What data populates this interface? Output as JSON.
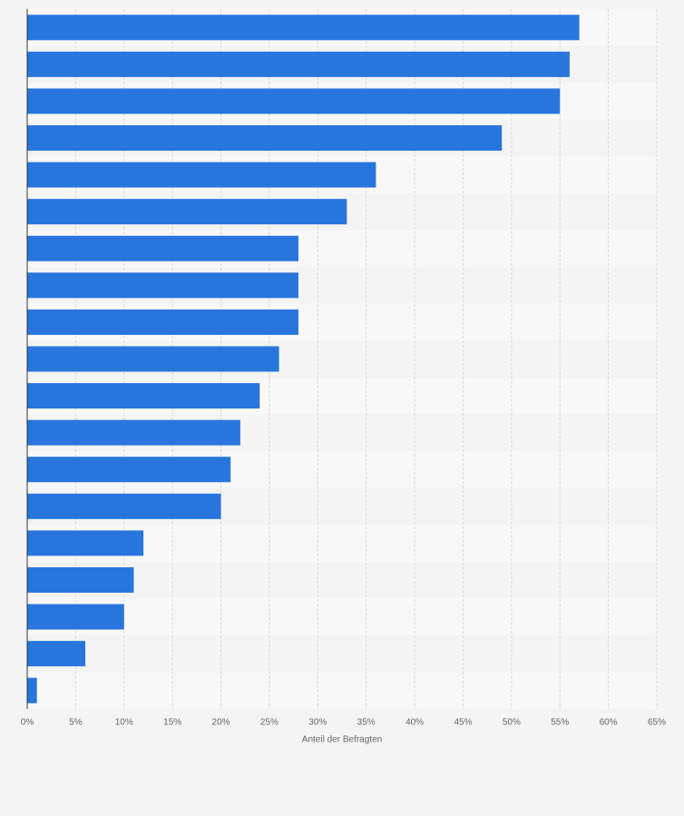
{
  "chart_data": {
    "type": "bar",
    "orientation": "horizontal",
    "x_label": "Anteil der Befragten",
    "categories": [
      null,
      null,
      null,
      null,
      null,
      null,
      null,
      null,
      null,
      null,
      null,
      null,
      null,
      null,
      null,
      null,
      null,
      null,
      null
    ],
    "values": [
      57,
      56,
      55,
      49,
      36,
      33,
      28,
      28,
      28,
      26,
      24,
      22,
      21,
      20,
      12,
      11,
      10,
      6,
      1
    ],
    "color": "#2876dd",
    "xlim": [
      0,
      65
    ],
    "xticks": [
      {
        "value": 0,
        "label": "0%"
      },
      {
        "value": 5,
        "label": "5%"
      },
      {
        "value": 10,
        "label": "10%"
      },
      {
        "value": 15,
        "label": "15%"
      },
      {
        "value": 20,
        "label": "20%"
      },
      {
        "value": 25,
        "label": "25%"
      },
      {
        "value": 30,
        "label": "30%"
      },
      {
        "value": 35,
        "label": "35%"
      },
      {
        "value": 40,
        "label": "40%"
      },
      {
        "value": 45,
        "label": "45%"
      },
      {
        "value": 50,
        "label": "50%"
      },
      {
        "value": 55,
        "label": "55%"
      },
      {
        "value": 60,
        "label": "60%"
      },
      {
        "value": 65,
        "label": "65%"
      }
    ],
    "grid": true
  }
}
